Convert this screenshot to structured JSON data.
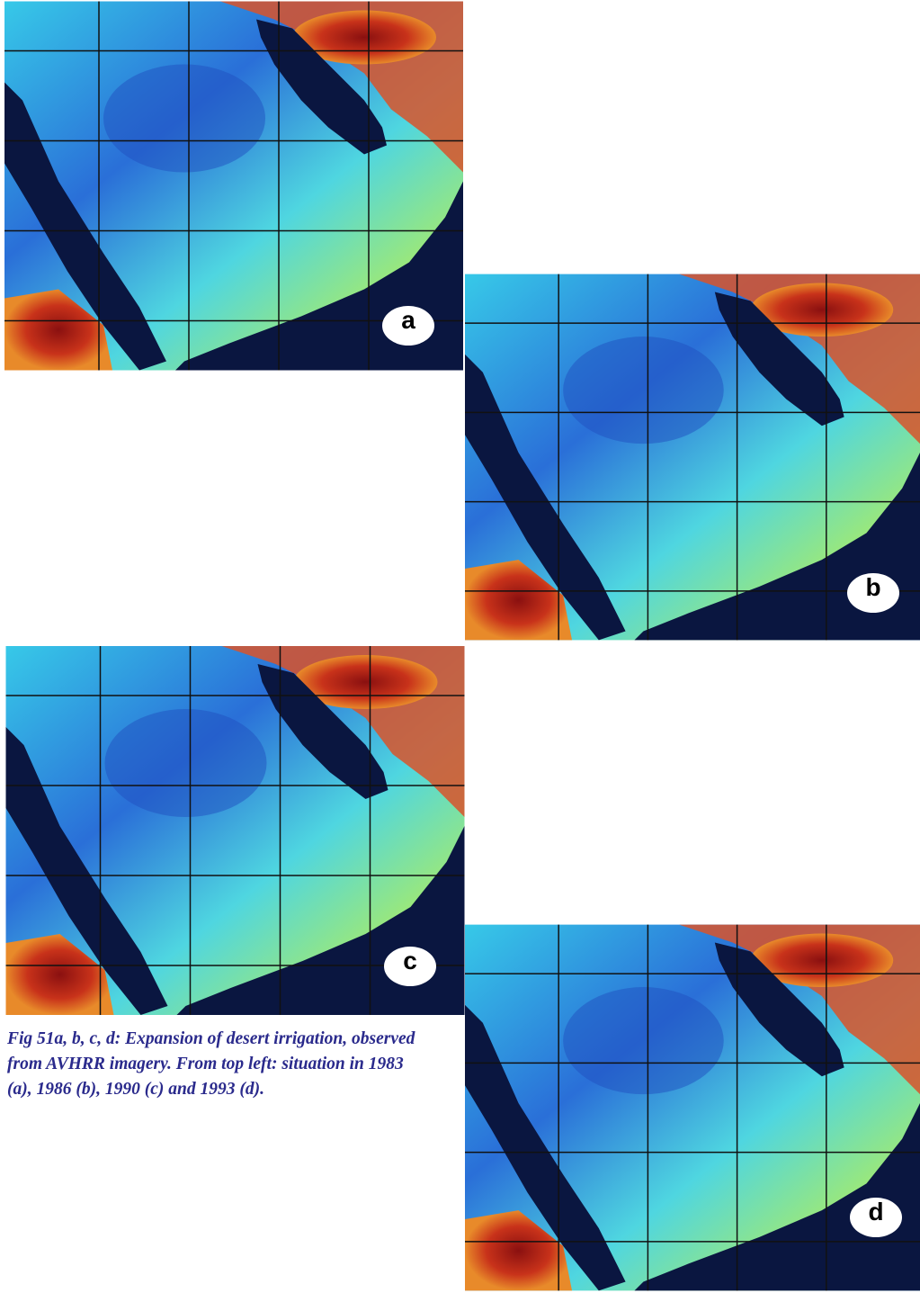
{
  "panels": [
    {
      "label": "a"
    },
    {
      "label": "b"
    },
    {
      "label": "c"
    },
    {
      "label": "d"
    }
  ],
  "caption": "Fig 51a, b, c, d: Expansion of desert irrigation, observed from AVHRR imagery. From top left: situation in 1983 (a), 1986 (b), 1990 (c) and 1993 (d)."
}
